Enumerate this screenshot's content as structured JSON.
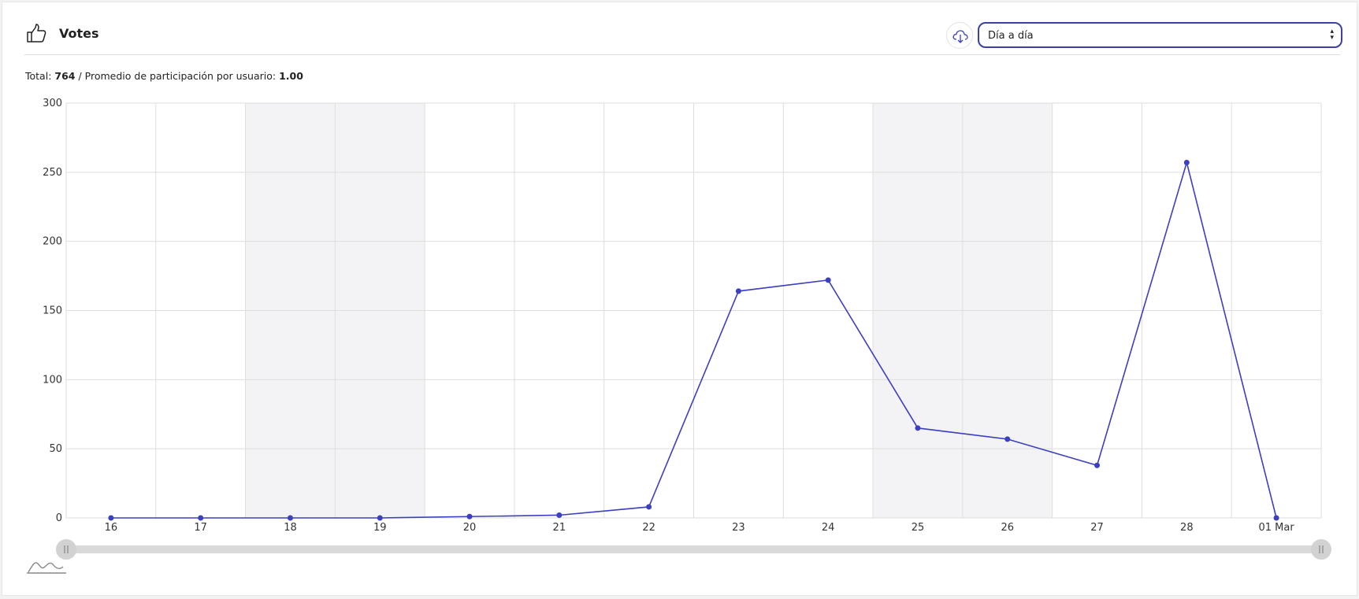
{
  "header": {
    "title": "Votes",
    "select_value": "Día a día"
  },
  "summary": {
    "total_label": "Total:",
    "total_value": "764",
    "separator": "/",
    "average_label": "Promedio de participación por usuario:",
    "average_value": "1.00"
  },
  "colors": {
    "series": "#3b3fc0",
    "weekend_band": "#f3f3f5",
    "grid": "#dedede",
    "select_border": "#3b3fa8"
  },
  "icons": {
    "header": "thumbs-up-icon",
    "download": "cloud-download-icon",
    "navigator": "area-chart-icon"
  },
  "chart_data": {
    "type": "line",
    "x": [
      "16",
      "17",
      "18",
      "19",
      "20",
      "21",
      "22",
      "23",
      "24",
      "25",
      "26",
      "27",
      "28",
      "01 Mar"
    ],
    "series": [
      {
        "values": [
          0,
          0,
          0,
          0,
          1,
          2,
          8,
          164,
          172,
          65,
          57,
          38,
          257,
          0
        ]
      }
    ],
    "weekend_bands": [
      [
        "18",
        "19"
      ],
      [
        "25",
        "26"
      ]
    ],
    "ylim": [
      0,
      300
    ],
    "yticks": [
      0,
      50,
      100,
      150,
      200,
      250,
      300
    ],
    "title": "",
    "xlabel": "",
    "ylabel": "",
    "grid": true,
    "legend": "none",
    "range_slider": true
  }
}
